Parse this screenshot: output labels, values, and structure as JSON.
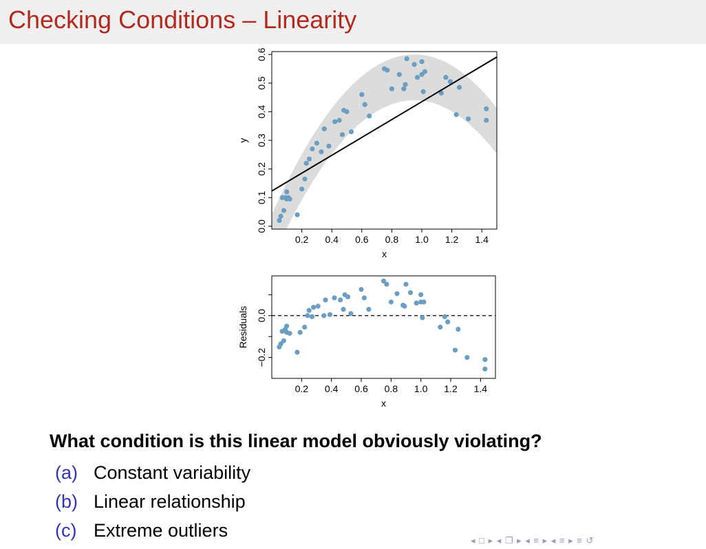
{
  "slide": {
    "title": "Checking Conditions – Linearity",
    "question": "What condition is this linear model obviously violating?",
    "options": [
      {
        "letter": "(a)",
        "text": "Constant variability"
      },
      {
        "letter": "(b)",
        "text": "Linear relationship"
      },
      {
        "letter": "(c)",
        "text": "Extreme outliers"
      }
    ],
    "nav_symbols": "◂ □ ▸ ◂ ❐ ▸ ◂ ≡ ▸ ◂ ≡ ▸   ≡   ↺"
  },
  "colors": {
    "title": "#b22a1e",
    "title_bg": "#efefef",
    "points": "#6b9ec0",
    "band": "#dcdcdc",
    "option_letter": "#3333b3"
  },
  "chart_data": [
    {
      "type": "scatter",
      "name": "scatter-with-fit",
      "xlabel": "x",
      "ylabel": "y",
      "xlim": [
        0.0,
        1.5
      ],
      "ylim": [
        -0.01,
        0.61
      ],
      "xticks": [
        0.2,
        0.4,
        0.6,
        0.8,
        1.0,
        1.2,
        1.4
      ],
      "xtick_labels": [
        "0.2",
        "0.4",
        "0.6",
        "0.8",
        "1.0",
        "1.2",
        "1.4"
      ],
      "yticks": [
        0.0,
        0.1,
        0.2,
        0.3,
        0.4,
        0.5,
        0.6
      ],
      "ytick_labels": [
        "0.0",
        "0.1",
        "0.2",
        "0.3",
        "0.4",
        "0.5",
        "0.6"
      ],
      "fit_line": {
        "intercept": 0.123,
        "slope": 0.312
      },
      "band": {
        "description": "shaded quadratic band",
        "center": "-0.62*(x-0.95)^2+0.52",
        "half_width": 0.08
      },
      "points": [
        {
          "x": 0.05,
          "y": 0.02
        },
        {
          "x": 0.06,
          "y": 0.035
        },
        {
          "x": 0.07,
          "y": 0.1
        },
        {
          "x": 0.08,
          "y": 0.055
        },
        {
          "x": 0.09,
          "y": 0.1
        },
        {
          "x": 0.1,
          "y": 0.12
        },
        {
          "x": 0.1,
          "y": 0.095
        },
        {
          "x": 0.11,
          "y": 0.1
        },
        {
          "x": 0.12,
          "y": 0.095
        },
        {
          "x": 0.17,
          "y": 0.04
        },
        {
          "x": 0.2,
          "y": 0.13
        },
        {
          "x": 0.22,
          "y": 0.165
        },
        {
          "x": 0.23,
          "y": 0.22
        },
        {
          "x": 0.25,
          "y": 0.235
        },
        {
          "x": 0.27,
          "y": 0.27
        },
        {
          "x": 0.3,
          "y": 0.29
        },
        {
          "x": 0.33,
          "y": 0.26
        },
        {
          "x": 0.35,
          "y": 0.34
        },
        {
          "x": 0.38,
          "y": 0.28
        },
        {
          "x": 0.42,
          "y": 0.365
        },
        {
          "x": 0.45,
          "y": 0.37
        },
        {
          "x": 0.47,
          "y": 0.32
        },
        {
          "x": 0.48,
          "y": 0.405
        },
        {
          "x": 0.5,
          "y": 0.4
        },
        {
          "x": 0.53,
          "y": 0.33
        },
        {
          "x": 0.6,
          "y": 0.46
        },
        {
          "x": 0.62,
          "y": 0.425
        },
        {
          "x": 0.65,
          "y": 0.385
        },
        {
          "x": 0.75,
          "y": 0.55
        },
        {
          "x": 0.77,
          "y": 0.545
        },
        {
          "x": 0.8,
          "y": 0.48
        },
        {
          "x": 0.85,
          "y": 0.53
        },
        {
          "x": 0.88,
          "y": 0.48
        },
        {
          "x": 0.89,
          "y": 0.495
        },
        {
          "x": 0.9,
          "y": 0.585
        },
        {
          "x": 0.95,
          "y": 0.565
        },
        {
          "x": 0.97,
          "y": 0.52
        },
        {
          "x": 1.0,
          "y": 0.53
        },
        {
          "x": 1.0,
          "y": 0.575
        },
        {
          "x": 1.01,
          "y": 0.47
        },
        {
          "x": 1.02,
          "y": 0.54
        },
        {
          "x": 1.13,
          "y": 0.465
        },
        {
          "x": 1.16,
          "y": 0.52
        },
        {
          "x": 1.19,
          "y": 0.505
        },
        {
          "x": 1.23,
          "y": 0.39
        },
        {
          "x": 1.25,
          "y": 0.485
        },
        {
          "x": 1.31,
          "y": 0.375
        },
        {
          "x": 1.43,
          "y": 0.41
        },
        {
          "x": 1.43,
          "y": 0.37
        }
      ]
    },
    {
      "type": "scatter",
      "name": "residual-plot",
      "xlabel": "x",
      "ylabel": "Residuals",
      "xlim": [
        0.0,
        1.5
      ],
      "ylim": [
        -0.3,
        0.19
      ],
      "xticks": [
        0.2,
        0.4,
        0.6,
        0.8,
        1.0,
        1.2,
        1.4
      ],
      "xtick_labels": [
        "0.2",
        "0.4",
        "0.6",
        "0.8",
        "1.0",
        "1.2",
        "1.4"
      ],
      "yticks": [
        -0.2,
        0.0
      ],
      "ytick_labels": [
        "−0.2",
        "0.0"
      ],
      "yticks_unlabeled": [
        -0.1,
        0.1
      ],
      "reference_line": 0.0,
      "points": [
        {
          "x": 0.05,
          "y": -0.15
        },
        {
          "x": 0.06,
          "y": -0.135
        },
        {
          "x": 0.07,
          "y": -0.075
        },
        {
          "x": 0.08,
          "y": -0.12
        },
        {
          "x": 0.09,
          "y": -0.065
        },
        {
          "x": 0.1,
          "y": -0.05
        },
        {
          "x": 0.1,
          "y": -0.08
        },
        {
          "x": 0.12,
          "y": -0.085
        },
        {
          "x": 0.17,
          "y": -0.175
        },
        {
          "x": 0.19,
          "y": -0.08
        },
        {
          "x": 0.22,
          "y": -0.055
        },
        {
          "x": 0.24,
          "y": 0.0
        },
        {
          "x": 0.25,
          "y": 0.025
        },
        {
          "x": 0.27,
          "y": -0.005
        },
        {
          "x": 0.28,
          "y": 0.04
        },
        {
          "x": 0.31,
          "y": 0.045
        },
        {
          "x": 0.35,
          "y": 0.0
        },
        {
          "x": 0.36,
          "y": 0.075
        },
        {
          "x": 0.39,
          "y": 0.005
        },
        {
          "x": 0.42,
          "y": 0.085
        },
        {
          "x": 0.46,
          "y": 0.075
        },
        {
          "x": 0.48,
          "y": 0.03
        },
        {
          "x": 0.49,
          "y": 0.1
        },
        {
          "x": 0.51,
          "y": 0.09
        },
        {
          "x": 0.53,
          "y": 0.01
        },
        {
          "x": 0.6,
          "y": 0.125
        },
        {
          "x": 0.62,
          "y": 0.085
        },
        {
          "x": 0.65,
          "y": 0.03
        },
        {
          "x": 0.75,
          "y": 0.165
        },
        {
          "x": 0.77,
          "y": 0.15
        },
        {
          "x": 0.8,
          "y": 0.065
        },
        {
          "x": 0.84,
          "y": 0.105
        },
        {
          "x": 0.88,
          "y": 0.05
        },
        {
          "x": 0.89,
          "y": 0.045
        },
        {
          "x": 0.9,
          "y": 0.15
        },
        {
          "x": 0.93,
          "y": 0.11
        },
        {
          "x": 0.97,
          "y": 0.06
        },
        {
          "x": 1.0,
          "y": 0.1
        },
        {
          "x": 1.0,
          "y": 0.065
        },
        {
          "x": 1.01,
          "y": -0.01
        },
        {
          "x": 1.02,
          "y": 0.065
        },
        {
          "x": 1.13,
          "y": -0.055
        },
        {
          "x": 1.16,
          "y": -0.005
        },
        {
          "x": 1.18,
          "y": -0.03
        },
        {
          "x": 1.23,
          "y": -0.165
        },
        {
          "x": 1.25,
          "y": -0.065
        },
        {
          "x": 1.31,
          "y": -0.2
        },
        {
          "x": 1.43,
          "y": -0.21
        },
        {
          "x": 1.43,
          "y": -0.255
        }
      ]
    }
  ]
}
